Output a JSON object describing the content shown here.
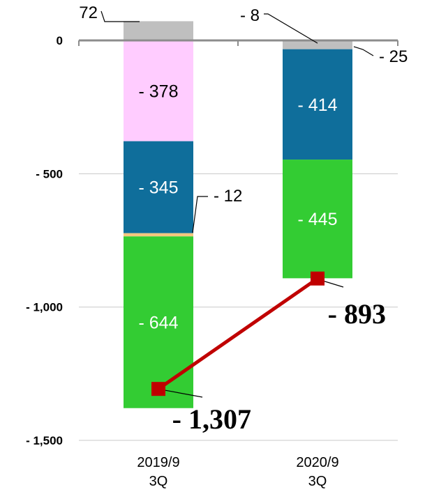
{
  "chart_data": {
    "type": "bar",
    "stacked": true,
    "categories": [
      "2019/9\n3Q",
      "2020/9\n3Q"
    ],
    "y_ticks": [
      {
        "value": 0,
        "label": "0"
      },
      {
        "value": -500,
        "label": "- 500"
      },
      {
        "value": -1000,
        "label": "- 1,000"
      },
      {
        "value": -1500,
        "label": "- 1,500"
      }
    ],
    "ylim": [
      -1500,
      72
    ],
    "grid": true,
    "legend": "none",
    "series": [
      {
        "values": [
          72,
          -8
        ],
        "labels": [
          "72",
          "- 8"
        ],
        "color": "#bfbfbf",
        "label_style": "callout"
      },
      {
        "values": [
          0,
          -25
        ],
        "labels": [
          "",
          "- 25"
        ],
        "color": "#bfbfbf",
        "label_style": "callout"
      },
      {
        "values": [
          -378,
          0
        ],
        "labels": [
          "- 378",
          ""
        ],
        "color": "#ffccff",
        "label_style": "inside-dark"
      },
      {
        "values": [
          -345,
          -414
        ],
        "labels": [
          "- 345",
          "- 414"
        ],
        "color": "#0f6e9b",
        "label_style": "inside-light"
      },
      {
        "values": [
          -12,
          0
        ],
        "labels": [
          "- 12",
          ""
        ],
        "color": "#f5c77e",
        "label_style": "callout"
      },
      {
        "values": [
          -644,
          -445
        ],
        "labels": [
          "- 644",
          "- 445"
        ],
        "color": "#33cc33",
        "label_style": "inside-light"
      }
    ],
    "totals": {
      "values": [
        -1307,
        -893
      ],
      "labels": [
        "- 1,307",
        "- 893"
      ],
      "line_color": "#c00000"
    }
  }
}
